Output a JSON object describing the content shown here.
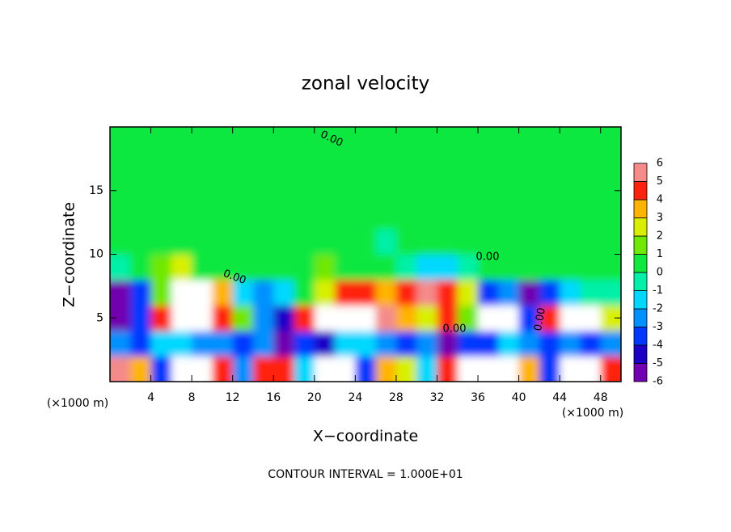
{
  "chart_data": {
    "type": "heatmap",
    "title": "zonal velocity",
    "x_label": "X−coordinate",
    "y_label": "Z−coordinate",
    "unit_labels": [
      "(×1000 m)",
      "(×1000 m)"
    ],
    "footer": "CONTOUR INTERVAL = 1.000E+01",
    "contour_labels": [
      "0.00",
      "0.00",
      "0.00",
      "0.00",
      "0.00"
    ],
    "xlim": [
      0,
      50
    ],
    "ylim": [
      0,
      20
    ],
    "xticks": [
      4,
      8,
      12,
      16,
      20,
      24,
      28,
      32,
      36,
      40,
      44,
      48
    ],
    "yticks": [
      5,
      10,
      15
    ],
    "x": [
      1,
      3,
      5,
      7,
      9,
      11,
      13,
      15,
      17,
      19,
      21,
      23,
      25,
      27,
      29,
      31,
      33,
      35,
      37,
      39,
      41,
      43,
      45,
      47,
      49
    ],
    "y": [
      1,
      3,
      5,
      7,
      9,
      11,
      13,
      15,
      17,
      19
    ],
    "z": [
      [
        6,
        4,
        -3,
        7,
        7,
        5,
        -2,
        5,
        5,
        -1,
        7,
        7,
        -3,
        4,
        3,
        -1,
        5,
        7,
        7,
        7,
        4,
        -3,
        7,
        7,
        5
      ],
      [
        -2,
        -3,
        -1,
        -1,
        -2,
        -2,
        -3,
        -2,
        -5,
        -3,
        -4,
        -1,
        -1,
        -2,
        -3,
        -2,
        -5,
        -3,
        -3,
        -1,
        -2,
        -3,
        -2,
        -3,
        -2
      ],
      [
        -6,
        -3,
        5,
        7,
        7,
        5,
        2,
        -2,
        -4,
        5,
        7,
        8,
        7,
        6,
        4,
        3,
        5,
        2,
        7,
        7,
        -3,
        5,
        7,
        7,
        3
      ],
      [
        -5,
        -3,
        2,
        7,
        7,
        4,
        -1,
        -2,
        -1,
        1,
        3,
        5,
        5,
        4,
        5,
        6,
        5,
        3,
        -3,
        -2,
        -5,
        -3,
        -1,
        -0.5,
        0
      ],
      [
        0,
        0.5,
        2,
        3,
        1,
        0.5,
        0.5,
        1,
        1,
        1,
        1.5,
        1,
        1,
        0.5,
        0,
        -1,
        -1,
        0,
        0.5,
        0.5,
        0.5,
        0.5,
        0.5,
        0.5,
        0.5
      ],
      [
        1,
        1,
        1,
        0.8,
        0.8,
        0.8,
        1,
        1,
        1,
        1,
        0.8,
        0.5,
        0.3,
        0,
        0.2,
        0.5,
        0.8,
        1,
        1,
        1,
        1,
        1,
        1,
        1,
        1
      ],
      [
        0.7,
        0.7,
        0.7,
        0.8,
        1,
        1,
        1,
        1,
        1,
        0.8,
        0.7,
        0.5,
        0.5,
        0.5,
        0.5,
        0.7,
        1,
        1,
        1,
        1,
        1,
        1,
        1,
        1,
        0.8
      ],
      [
        0.5,
        0.5,
        0.5,
        0.8,
        0.8,
        1,
        1,
        1,
        0.8,
        0.5,
        0.5,
        0.5,
        0.3,
        0.3,
        0.3,
        0.5,
        0.5,
        0.8,
        1,
        1,
        1,
        1,
        0.8,
        0.8,
        0.5
      ],
      [
        0.5,
        0.5,
        0.5,
        0.5,
        0.5,
        0.8,
        0.8,
        0.8,
        0.5,
        0.5,
        0.5,
        0.3,
        0.3,
        0.3,
        0.3,
        0.3,
        0.5,
        0.5,
        0.8,
        0.8,
        0.8,
        0.8,
        0.5,
        0.5,
        0.5
      ],
      [
        0.5,
        0.5,
        0.5,
        0.5,
        0.5,
        0.5,
        0.5,
        0.5,
        0.5,
        0.5,
        0.3,
        0.3,
        0.3,
        0.3,
        0.3,
        0.3,
        0.3,
        0.5,
        0.5,
        0.5,
        0.5,
        0.5,
        0.5,
        0.5,
        0.5
      ]
    ],
    "colorbar": {
      "levels": [
        -6,
        -5,
        -4,
        -3,
        -2,
        -1,
        0,
        1,
        2,
        3,
        4,
        5,
        6
      ],
      "colors": [
        "#7000b0",
        "#1c00c8",
        "#0038ff",
        "#0090ff",
        "#00d8ff",
        "#00f0a8",
        "#10e840",
        "#70e800",
        "#d8f000",
        "#ffb400",
        "#ff2010",
        "#f48a8a"
      ],
      "out_of_range_color": "#ffffff"
    }
  }
}
